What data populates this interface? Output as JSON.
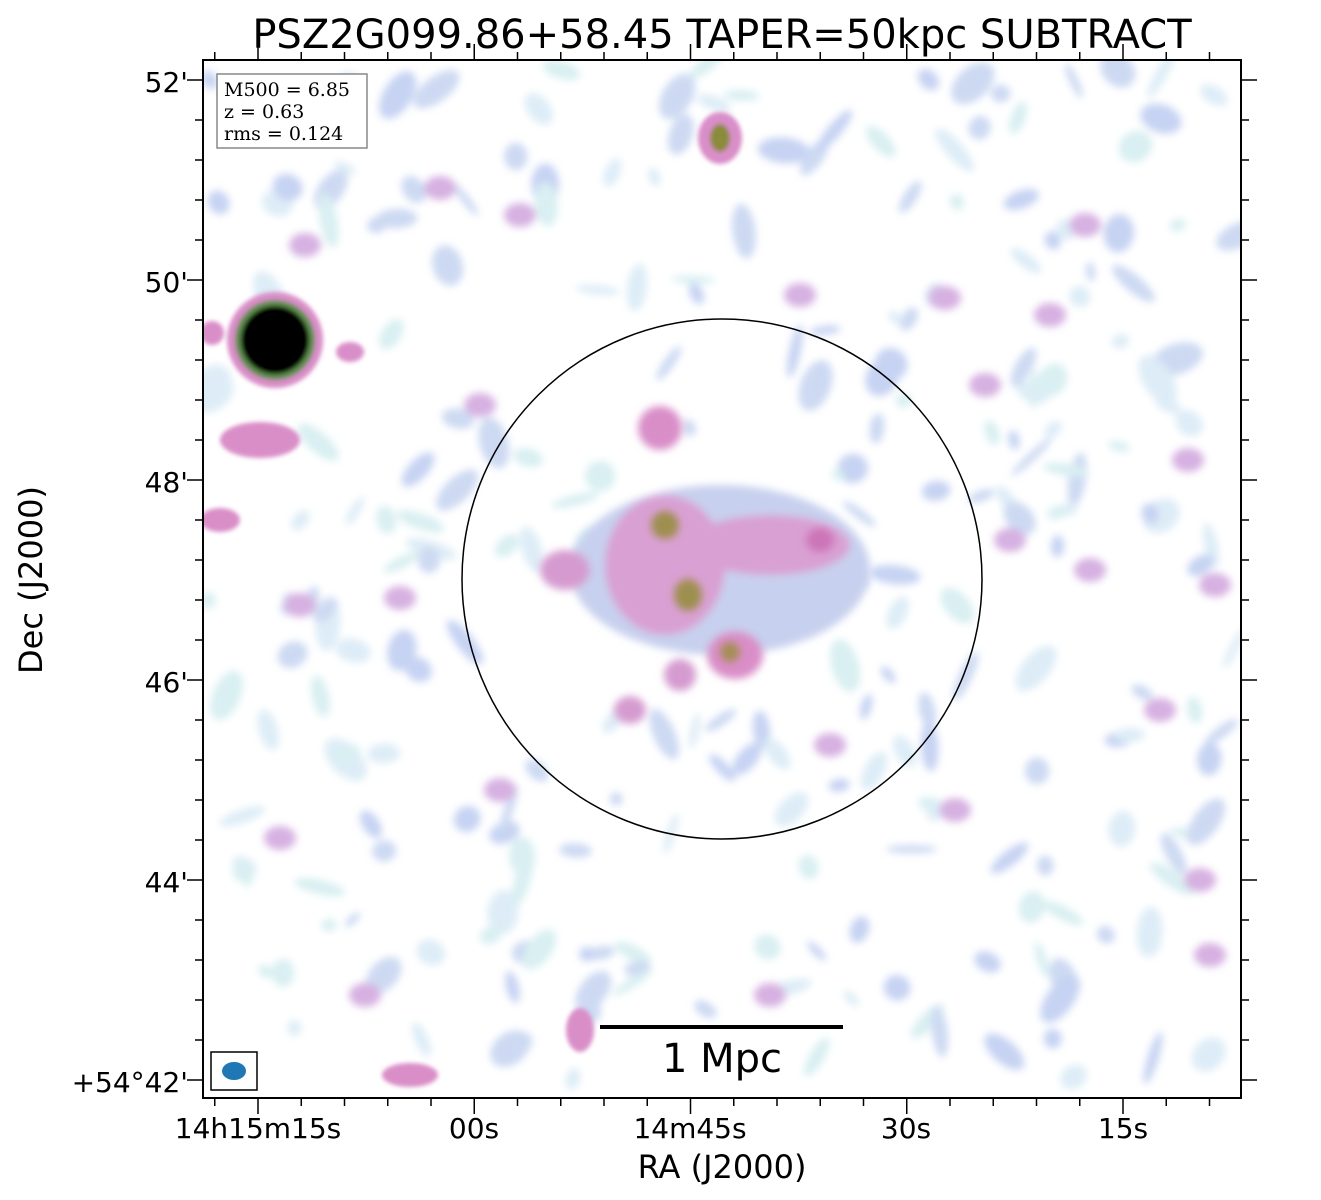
{
  "figure": {
    "title": "PSZ2G099.86+58.45 TAPER=50kpc SUBTRACT",
    "xlabel": "RA (J2000)",
    "ylabel": "Dec (J2000)",
    "x_ticks": [
      "14h15m15s",
      "00s",
      "14m45s",
      "30s",
      "15s"
    ],
    "y_ticks": [
      "52'",
      "50'",
      "48'",
      "46'",
      "44'",
      "+54°42'"
    ],
    "info_box": {
      "m500": "M500 = 6.85",
      "z": "z = 0.63",
      "rms": "rms = 0.124"
    },
    "scale_bar_label": "1 Mpc",
    "colors": {
      "faint_emission": "#cfe8ef",
      "low_emission": "#b9c8ee",
      "mid_emission": "#d98ec8",
      "high_emission": "#a9a24a",
      "peak_emission": "#000000",
      "beam": "#1f77b4"
    }
  }
}
